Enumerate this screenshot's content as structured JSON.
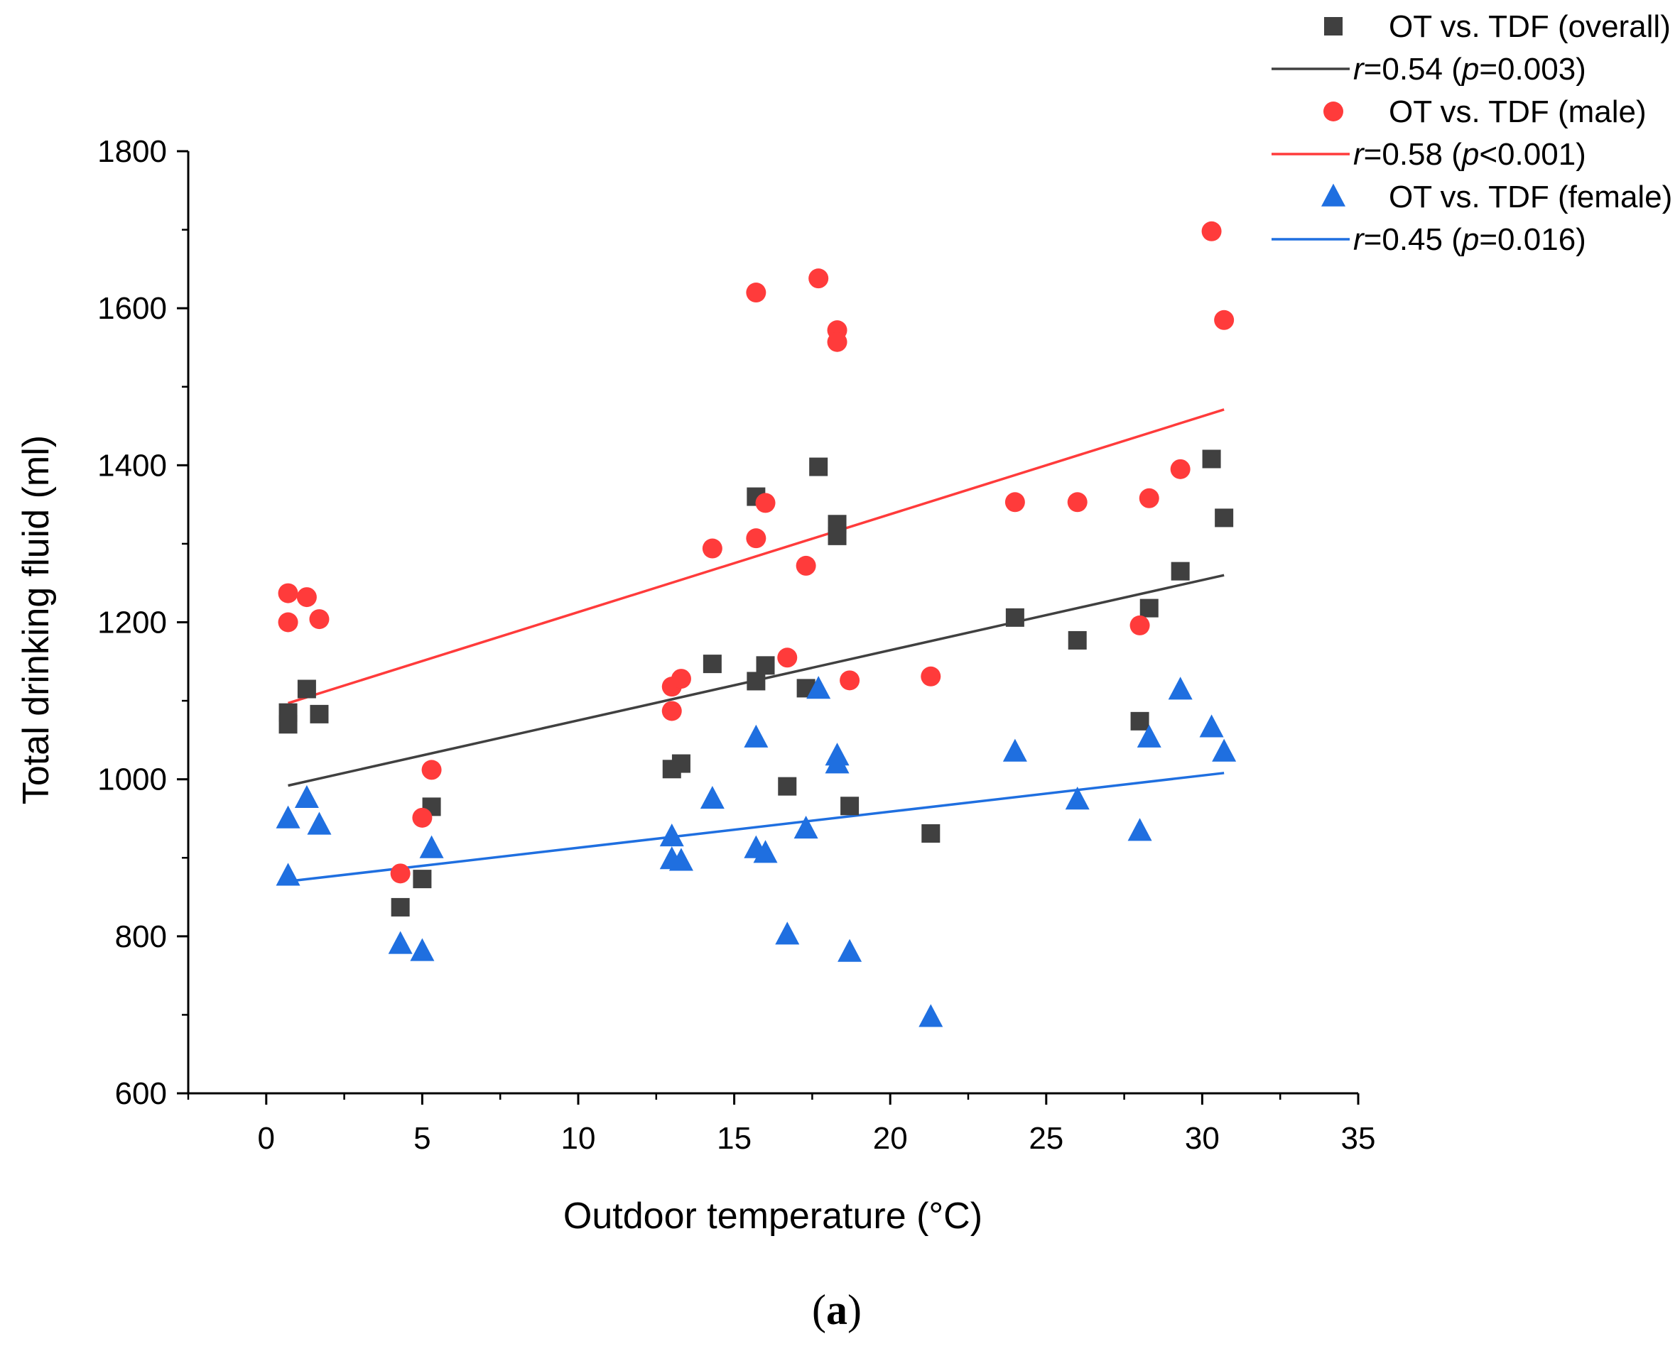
{
  "chart_data": {
    "type": "scatter",
    "title": "",
    "panel_label": {
      "open": "(",
      "letter": "a",
      "close": ")"
    },
    "xlabel": "Outdoor temperature (°C)",
    "ylabel": "Total drinking fluid (ml)",
    "xlim": [
      -2.5,
      35
    ],
    "ylim": [
      600,
      1800
    ],
    "xticks": [
      0,
      5,
      10,
      15,
      20,
      25,
      30,
      35
    ],
    "yticks": [
      600,
      800,
      1000,
      1200,
      1400,
      1600,
      1800
    ],
    "legend_position": "top-right",
    "series": [
      {
        "name": "OT vs. TDF (overall)",
        "marker": "square",
        "color": "#404040",
        "points": [
          [
            0.7,
            1085
          ],
          [
            0.7,
            1070
          ],
          [
            1.3,
            1115
          ],
          [
            1.7,
            1083
          ],
          [
            4.3,
            837
          ],
          [
            5.0,
            873
          ],
          [
            5.3,
            965
          ],
          [
            13.0,
            1013
          ],
          [
            13.3,
            1020
          ],
          [
            14.3,
            1147
          ],
          [
            15.7,
            1360
          ],
          [
            15.7,
            1125
          ],
          [
            16.0,
            1145
          ],
          [
            16.7,
            991
          ],
          [
            17.3,
            1116
          ],
          [
            17.7,
            1398
          ],
          [
            18.3,
            1325
          ],
          [
            18.3,
            1310
          ],
          [
            18.7,
            966
          ],
          [
            21.3,
            931
          ],
          [
            24.0,
            1206
          ],
          [
            26.0,
            1177
          ],
          [
            28.0,
            1074
          ],
          [
            28.3,
            1218
          ],
          [
            29.3,
            1265
          ],
          [
            30.3,
            1408
          ],
          [
            30.7,
            1333
          ]
        ],
        "fit": {
          "x": [
            0.7,
            30.7
          ],
          "y": [
            992,
            1260
          ],
          "label_prefix": "r",
          "label_r": "=0.54 (",
          "label_p": "p",
          "label_suffix": "=0.003)",
          "color": "#404040"
        }
      },
      {
        "name": "OT vs. TDF (male)",
        "marker": "circle",
        "color": "#ff3b3b",
        "points": [
          [
            0.7,
            1237
          ],
          [
            0.7,
            1200
          ],
          [
            1.3,
            1232
          ],
          [
            1.7,
            1204
          ],
          [
            4.3,
            880
          ],
          [
            5.0,
            951
          ],
          [
            5.3,
            1012
          ],
          [
            13.0,
            1118
          ],
          [
            13.0,
            1087
          ],
          [
            13.3,
            1128
          ],
          [
            14.3,
            1294
          ],
          [
            15.7,
            1620
          ],
          [
            15.7,
            1307
          ],
          [
            16.0,
            1352
          ],
          [
            16.7,
            1155
          ],
          [
            17.3,
            1272
          ],
          [
            17.7,
            1638
          ],
          [
            18.3,
            1572
          ],
          [
            18.3,
            1557
          ],
          [
            18.7,
            1126
          ],
          [
            21.3,
            1131
          ],
          [
            24.0,
            1353
          ],
          [
            26.0,
            1353
          ],
          [
            28.0,
            1196
          ],
          [
            28.3,
            1358
          ],
          [
            29.3,
            1395
          ],
          [
            30.3,
            1698
          ],
          [
            30.7,
            1585
          ]
        ],
        "fit": {
          "x": [
            0.7,
            30.7
          ],
          "y": [
            1097,
            1471
          ],
          "label_prefix": "r",
          "label_r": "=0.58 (",
          "label_p": "p",
          "label_suffix": "<0.001)",
          "color": "#ff3b3b"
        }
      },
      {
        "name": "OT vs. TDF (female)",
        "marker": "triangle",
        "color": "#1f6fe0",
        "points": [
          [
            0.7,
            950
          ],
          [
            0.7,
            877
          ],
          [
            1.3,
            976
          ],
          [
            1.7,
            942
          ],
          [
            4.3,
            790
          ],
          [
            5.0,
            781
          ],
          [
            5.3,
            912
          ],
          [
            13.0,
            927
          ],
          [
            13.0,
            898
          ],
          [
            13.3,
            896
          ],
          [
            14.3,
            975
          ],
          [
            15.7,
            1053
          ],
          [
            15.7,
            912
          ],
          [
            16.0,
            906
          ],
          [
            16.7,
            802
          ],
          [
            17.3,
            937
          ],
          [
            17.7,
            1115
          ],
          [
            18.3,
            1030
          ],
          [
            18.3,
            1020
          ],
          [
            18.7,
            780
          ],
          [
            21.3,
            697
          ],
          [
            24.0,
            1035
          ],
          [
            26.0,
            974
          ],
          [
            28.0,
            934
          ],
          [
            28.3,
            1053
          ],
          [
            29.3,
            1114
          ],
          [
            30.3,
            1066
          ],
          [
            30.7,
            1035
          ]
        ],
        "fit": {
          "x": [
            0.7,
            30.7
          ],
          "y": [
            870,
            1008
          ],
          "label_prefix": "r",
          "label_r": "=0.45 (",
          "label_p": "p",
          "label_suffix": "=0.016)",
          "color": "#1f6fe0"
        }
      }
    ]
  }
}
